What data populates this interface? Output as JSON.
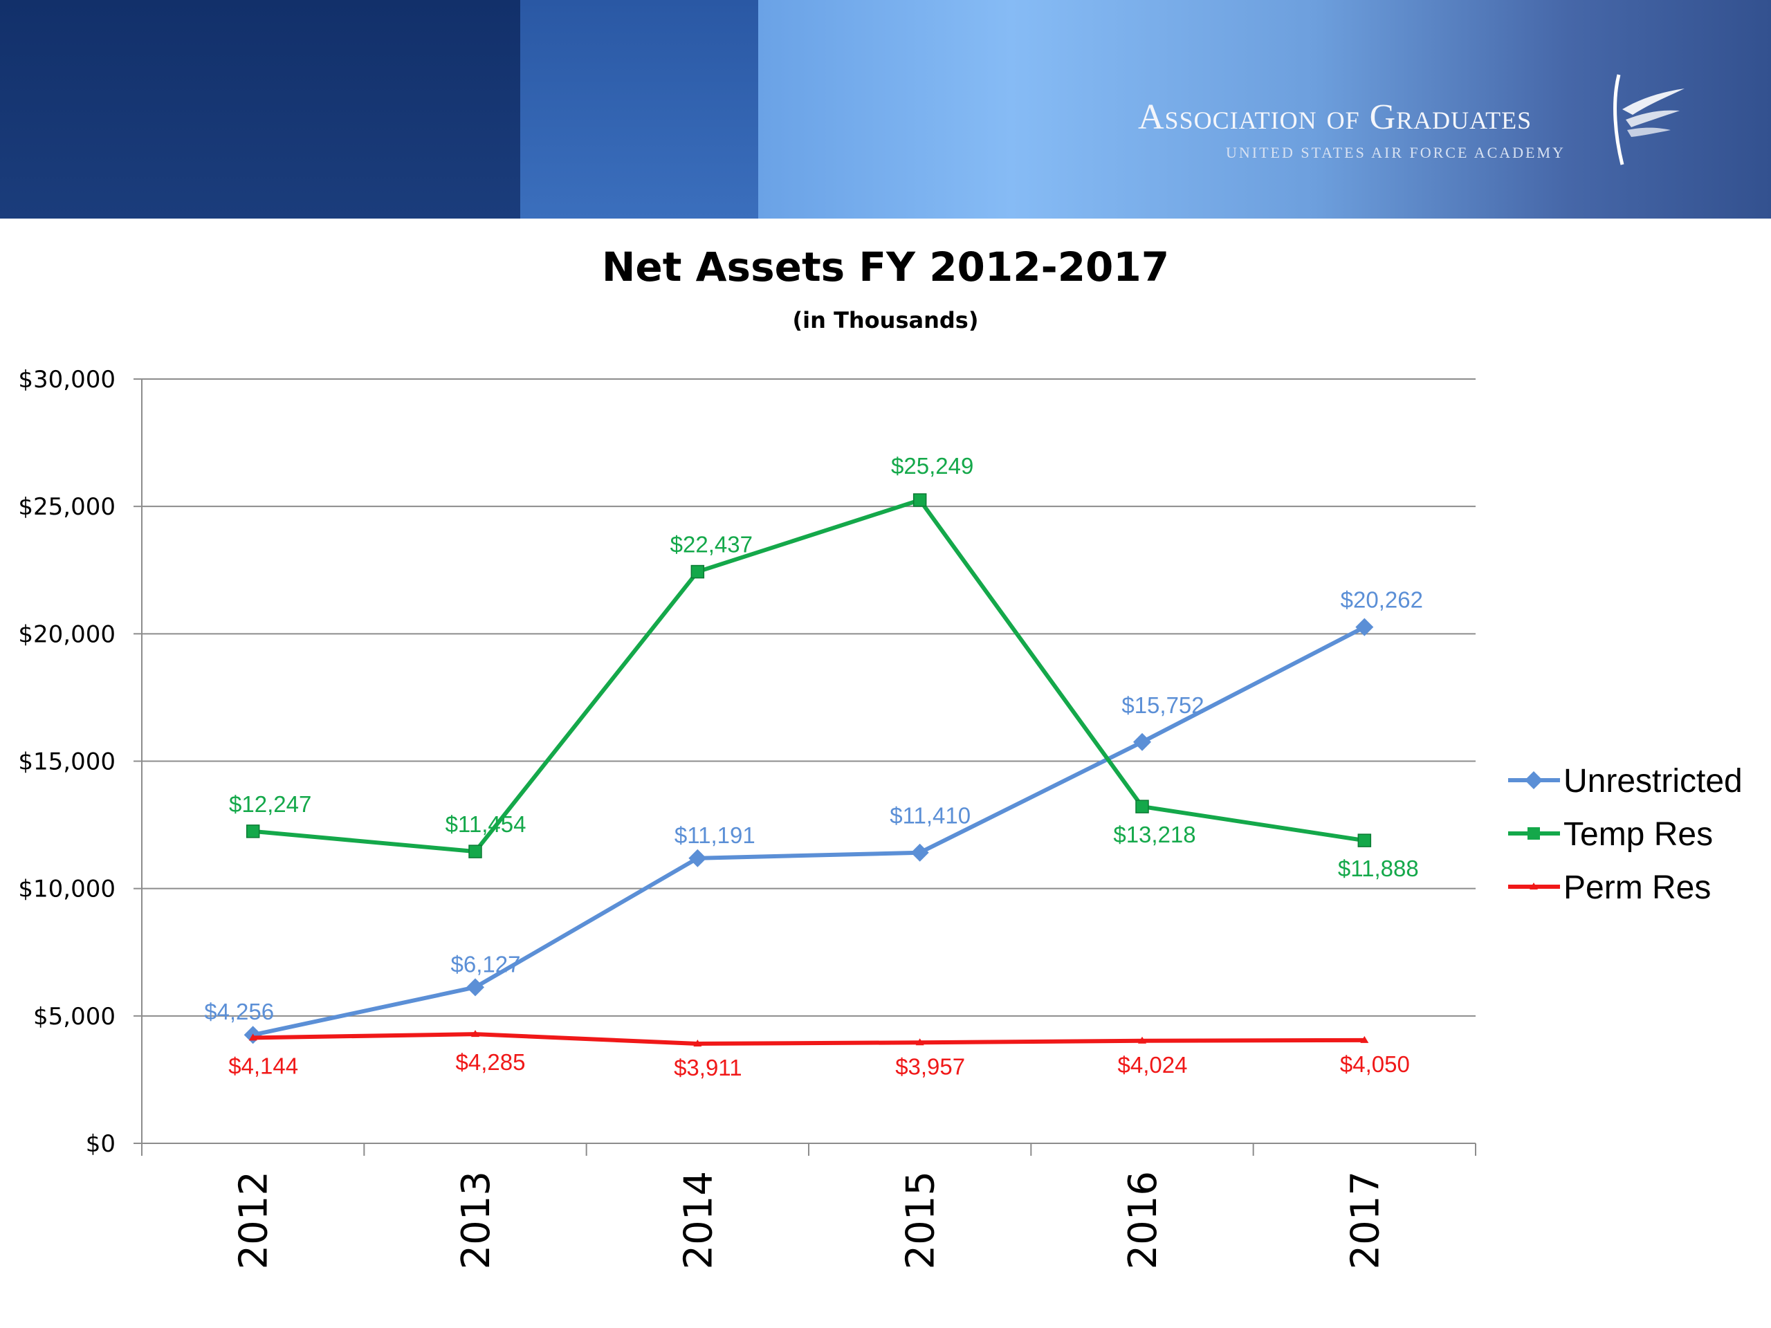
{
  "header": {
    "org_name": "Association of Graduates",
    "org_subtitle": "UNITED STATES AIR FORCE ACADEMY",
    "logo_icon": "falcon-wing-logo-icon"
  },
  "chart_data": {
    "type": "line",
    "title": "Net Assets FY 2012-2017",
    "subtitle": "(in Thousands)",
    "categories": [
      "2012",
      "2013",
      "2014",
      "2015",
      "2016",
      "2017"
    ],
    "ylim": [
      0,
      30000
    ],
    "yticks": [
      0,
      5000,
      10000,
      15000,
      20000,
      25000,
      30000
    ],
    "ytick_labels": [
      "$0",
      "$5,000",
      "$10,000",
      "$15,000",
      "$20,000",
      "$25,000",
      "$30,000"
    ],
    "grid": true,
    "legend_position": "right",
    "series": [
      {
        "name": "Unrestricted",
        "color": "#5b8fd6",
        "marker": "diamond",
        "values": [
          4256,
          6127,
          11191,
          11410,
          15752,
          20262
        ],
        "labels": [
          "$4,256",
          "$6,127",
          "$11,191",
          "$11,410",
          "$15,752",
          "$20,262"
        ]
      },
      {
        "name": "Temp Res",
        "color": "#14a84a",
        "marker": "square",
        "values": [
          12247,
          11454,
          22437,
          25249,
          13218,
          11888
        ],
        "labels": [
          "$12,247",
          "$11,454",
          "$22,437",
          "$25,249",
          "$13,218",
          "$11,888"
        ]
      },
      {
        "name": "Perm Res",
        "color": "#f01818",
        "marker": "triangle",
        "values": [
          4144,
          4285,
          3911,
          3957,
          4024,
          4050
        ],
        "labels": [
          "$4,144",
          "$4,285",
          "$3,911",
          "$3,957",
          "$4,024",
          "$4,050"
        ]
      }
    ]
  }
}
